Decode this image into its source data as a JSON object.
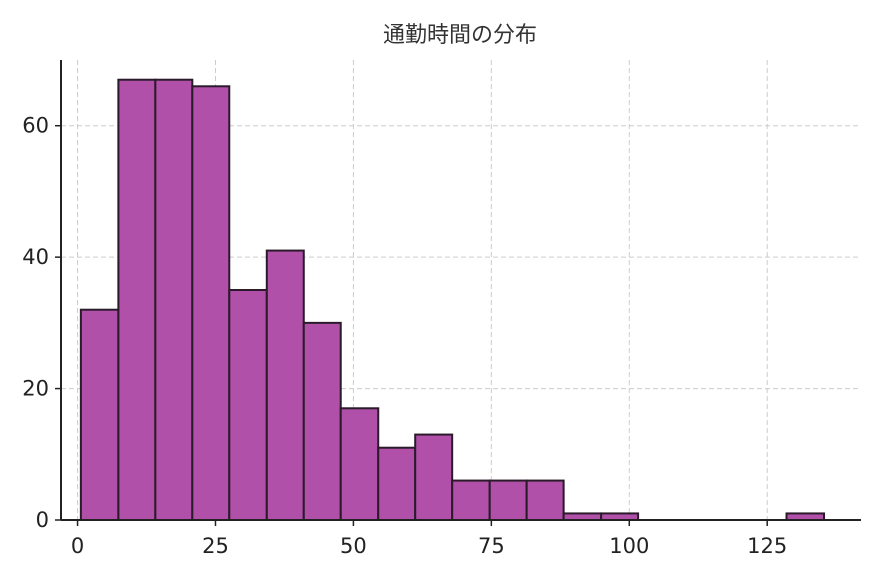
{
  "chart_data": {
    "type": "bar",
    "title": "通勤時間の分布",
    "xlabel": "",
    "ylabel": "",
    "xlim": [
      -3,
      142
    ],
    "ylim": [
      0,
      70
    ],
    "xticks": [
      0,
      25,
      50,
      75,
      100,
      125
    ],
    "yticks": [
      0,
      20,
      40,
      60
    ],
    "grid": true,
    "color": "#b050a8",
    "edge_color": "#2a1a2a",
    "bins": [
      {
        "x0": 0.6,
        "x1": 7.4,
        "count": 32
      },
      {
        "x0": 7.4,
        "x1": 14.1,
        "count": 67
      },
      {
        "x0": 14.1,
        "x1": 20.8,
        "count": 67
      },
      {
        "x0": 20.8,
        "x1": 27.5,
        "count": 66
      },
      {
        "x0": 27.5,
        "x1": 34.3,
        "count": 35
      },
      {
        "x0": 34.3,
        "x1": 41.0,
        "count": 41
      },
      {
        "x0": 41.0,
        "x1": 47.7,
        "count": 30
      },
      {
        "x0": 47.7,
        "x1": 54.5,
        "count": 17
      },
      {
        "x0": 54.5,
        "x1": 61.2,
        "count": 11
      },
      {
        "x0": 61.2,
        "x1": 67.9,
        "count": 13
      },
      {
        "x0": 67.9,
        "x1": 74.7,
        "count": 6
      },
      {
        "x0": 74.7,
        "x1": 81.4,
        "count": 6
      },
      {
        "x0": 81.4,
        "x1": 88.1,
        "count": 6
      },
      {
        "x0": 88.1,
        "x1": 94.9,
        "count": 1
      },
      {
        "x0": 94.9,
        "x1": 101.6,
        "count": 1
      },
      {
        "x0": 101.6,
        "x1": 108.3,
        "count": 0
      },
      {
        "x0": 108.3,
        "x1": 115.0,
        "count": 0
      },
      {
        "x0": 115.0,
        "x1": 121.8,
        "count": 0
      },
      {
        "x0": 121.8,
        "x1": 128.5,
        "count": 0
      },
      {
        "x0": 128.5,
        "x1": 135.3,
        "count": 1
      }
    ]
  }
}
